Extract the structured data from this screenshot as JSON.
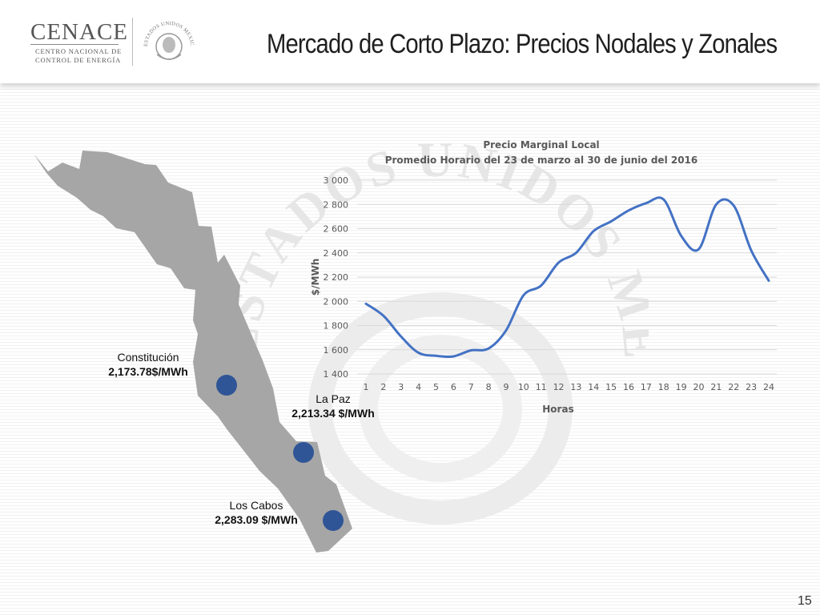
{
  "header": {
    "logo_name": "CENACE",
    "logo_line1": "CENTRO NACIONAL DE",
    "logo_line2": "CONTROL DE ENERGÍA",
    "seal_text": "ESTADOS UNIDOS MEXICANOS",
    "title": "Mercado de Corto Plazo: Precios Nodales y Zonales"
  },
  "watermark_text": "ESTADOS UNIDOS MEXICANOS",
  "map": {
    "fill_color": "#a6a6a6",
    "marker_color": "#2f5597",
    "nodes": [
      {
        "name": "Constitución",
        "price": "2,173.78$/MWh"
      },
      {
        "name": "La Paz",
        "price": "2,213.34 $/MWh"
      },
      {
        "name": "Los Cabos",
        "price": "2,283.09 $/MWh"
      }
    ]
  },
  "chart_data": {
    "type": "line",
    "title": "Precio Marginal Local",
    "subtitle": "Promedio Horario del 23 de marzo al 30 de junio del 2016",
    "xlabel": "Horas",
    "ylabel": "$/MWh",
    "ylim": [
      1400,
      3000
    ],
    "yticks": [
      1400,
      1600,
      1800,
      2000,
      2200,
      2400,
      2600,
      2800,
      3000
    ],
    "ytick_labels": [
      "1 400",
      "1 600",
      "1 800",
      "2 000",
      "2 200",
      "2 400",
      "2 600",
      "2 800",
      "3 000"
    ],
    "grid": true,
    "line_color": "#4472c4",
    "x": [
      1,
      2,
      3,
      4,
      5,
      6,
      7,
      8,
      9,
      10,
      11,
      12,
      13,
      14,
      15,
      16,
      17,
      18,
      19,
      20,
      21,
      22,
      23,
      24
    ],
    "series": [
      {
        "values": [
          1980,
          1880,
          1710,
          1575,
          1550,
          1545,
          1595,
          1610,
          1760,
          2050,
          2130,
          2320,
          2400,
          2580,
          2660,
          2750,
          2810,
          2840,
          2540,
          2430,
          2800,
          2790,
          2420,
          2170
        ]
      }
    ]
  },
  "page_number": "15"
}
